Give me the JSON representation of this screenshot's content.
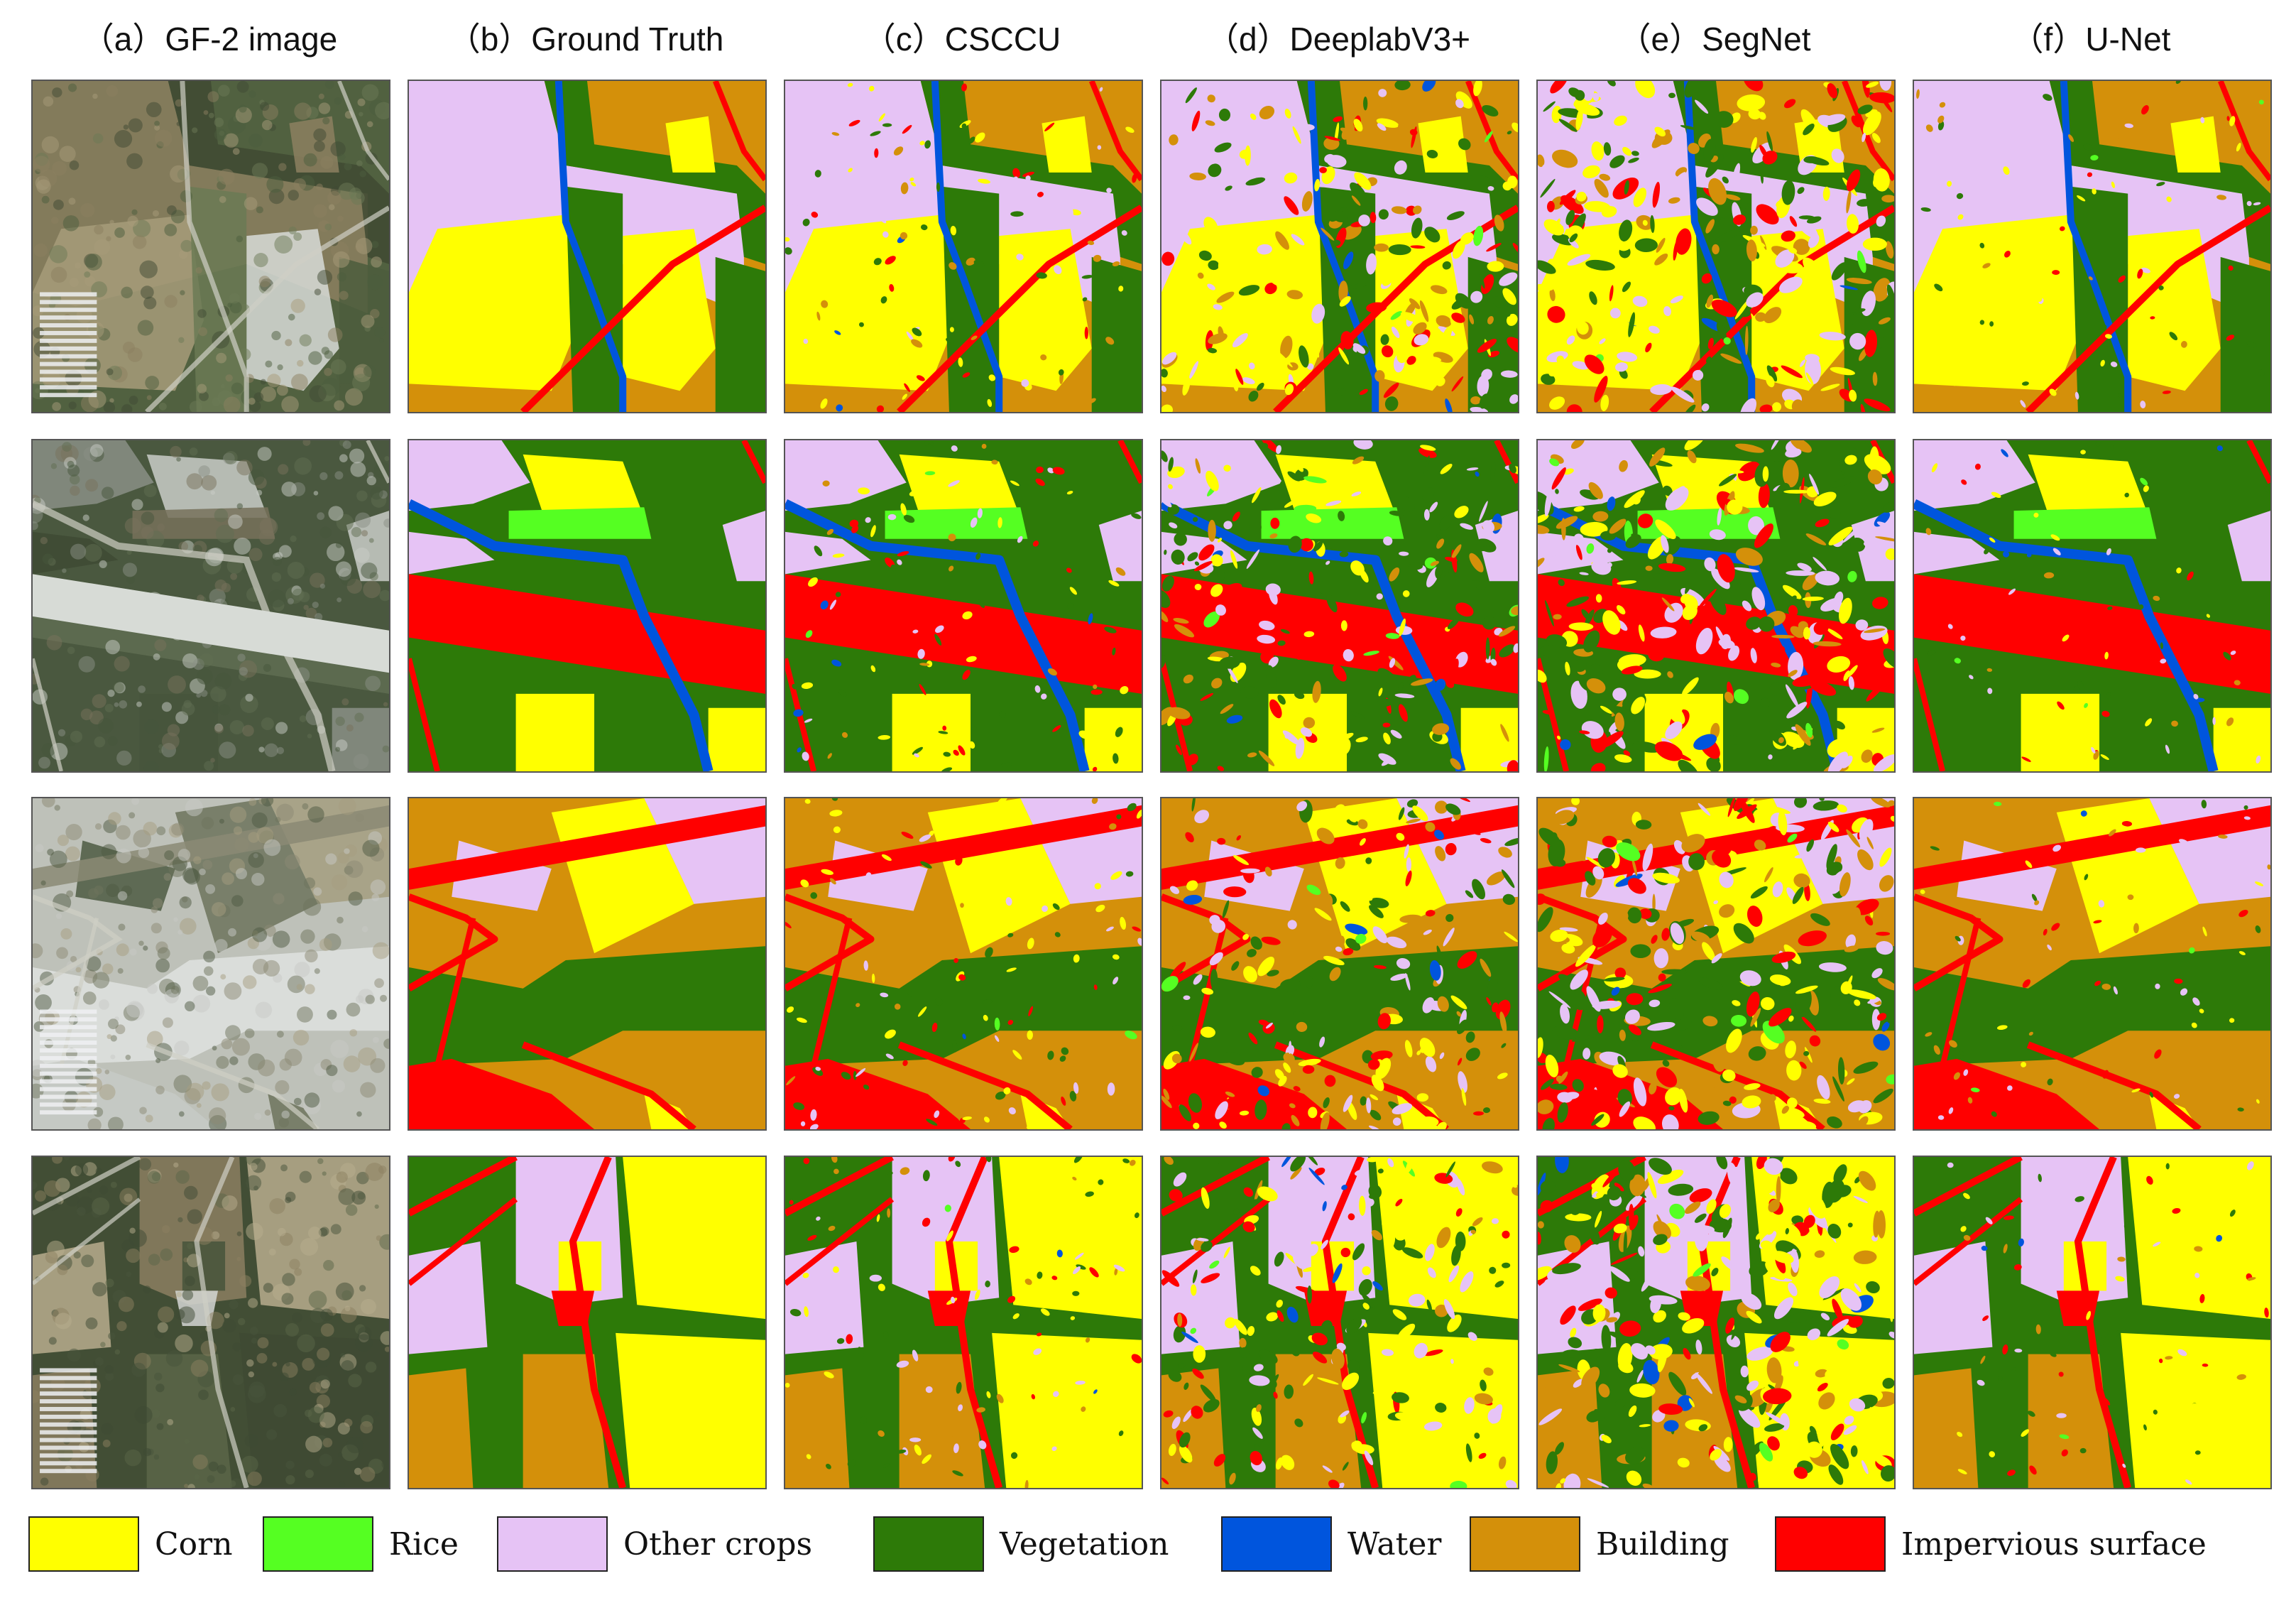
{
  "columns": [
    {
      "id": "a",
      "label": "（a）GF-2 image"
    },
    {
      "id": "b",
      "label": "（b）Ground Truth"
    },
    {
      "id": "c",
      "label": "（c）CSCCU"
    },
    {
      "id": "d",
      "label": "（d）DeeplabV3+"
    },
    {
      "id": "e",
      "label": "（e）SegNet"
    },
    {
      "id": "f",
      "label": "（f）U-Net"
    }
  ],
  "rows": 4,
  "classes": {
    "corn": "#FFFF00",
    "rice": "#55FF22",
    "other": "#E6C3F5",
    "veg": "#2D7A08",
    "water": "#0055DD",
    "building": "#D4900A",
    "impervious": "#FF0000"
  },
  "legend": [
    {
      "key": "corn",
      "label": "Corn",
      "color": "#FFFF00"
    },
    {
      "key": "rice",
      "label": "Rice",
      "color": "#55FF22"
    },
    {
      "key": "other",
      "label": "Other crops",
      "color": "#E6C3F5"
    },
    {
      "key": "veg",
      "label": "Vegetation",
      "color": "#2D7A08"
    },
    {
      "key": "water",
      "label": "Water",
      "color": "#0055DD"
    },
    {
      "key": "building",
      "label": "Building",
      "color": "#D4900A"
    },
    {
      "key": "impervious",
      "label": "Impervious surface",
      "color": "#FF0000"
    }
  ]
}
